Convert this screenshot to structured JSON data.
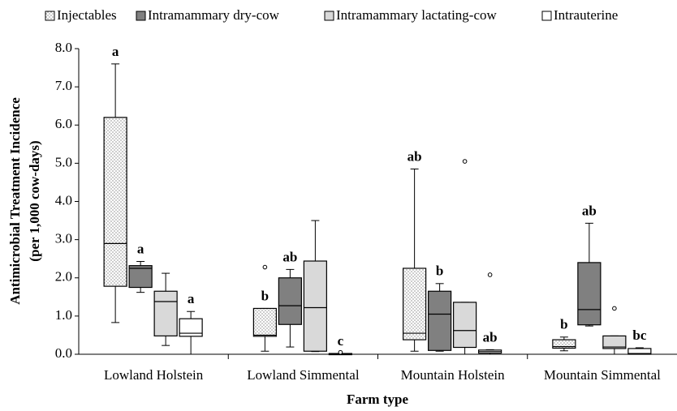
{
  "chart_data": {
    "type": "box",
    "ylabel": [
      "Antimicrobial Treatment Incidence",
      "(per 1,000 cow-days)"
    ],
    "xlabel": "Farm type",
    "categories": [
      "Lowland Holstein",
      "Lowland Simmental",
      "Mountain Holstein",
      "Mountain Simmental"
    ],
    "ylim": [
      0,
      8
    ],
    "yticks": [
      {
        "value": 0,
        "label": "0.0"
      },
      {
        "value": 1,
        "label": "1.0"
      },
      {
        "value": 2,
        "label": "2.0"
      },
      {
        "value": 3,
        "label": "3.0"
      },
      {
        "value": 4,
        "label": "4.0"
      },
      {
        "value": 5,
        "label": "5.0"
      },
      {
        "value": 6,
        "label": "6.0"
      },
      {
        "value": 7,
        "label": "7.0"
      },
      {
        "value": 8,
        "label": "8.0"
      }
    ],
    "legend": "top",
    "series": [
      {
        "name": "Injectables",
        "color": "#ffffff",
        "pattern": "dots",
        "boxes": [
          {
            "min": 0.83,
            "q1": 1.78,
            "median": 2.9,
            "q3": 6.2,
            "max": 7.6
          },
          {
            "min": 0.08,
            "q1": 0.47,
            "median": 0.5,
            "q3": 1.2,
            "max": 1.2
          },
          {
            "min": 0.08,
            "q1": 0.38,
            "median": 0.55,
            "q3": 2.25,
            "max": 4.85
          },
          {
            "min": 0.09,
            "q1": 0.16,
            "median": 0.2,
            "q3": 0.38,
            "max": 0.45
          }
        ],
        "outliers": [
          [],
          [
            2.28
          ],
          [],
          []
        ],
        "letters": [
          "a",
          "b",
          "ab",
          "b"
        ]
      },
      {
        "name": "Intramammary dry-cow",
        "color": "#808080",
        "boxes": [
          {
            "min": 1.62,
            "q1": 1.75,
            "median": 2.25,
            "q3": 2.32,
            "max": 2.43
          },
          {
            "min": 0.19,
            "q1": 0.78,
            "median": 1.27,
            "q3": 2.0,
            "max": 2.22
          },
          {
            "min": 0.08,
            "q1": 0.1,
            "median": 1.05,
            "q3": 1.65,
            "max": 1.85
          },
          {
            "min": 0.74,
            "q1": 0.77,
            "median": 1.17,
            "q3": 2.4,
            "max": 3.43
          }
        ],
        "outliers": [
          [],
          [],
          [],
          []
        ],
        "letters": [
          "a",
          "ab",
          "b",
          "ab"
        ]
      },
      {
        "name": "Intramammary lactating-cow",
        "color": "#d9d9d9",
        "boxes": [
          {
            "min": 0.23,
            "q1": 0.48,
            "median": 1.38,
            "q3": 1.65,
            "max": 2.12
          },
          {
            "min": 0.07,
            "q1": 0.08,
            "median": 1.22,
            "q3": 2.44,
            "max": 3.5
          },
          {
            "min": 0,
            "q1": 0.18,
            "median": 0.62,
            "q3": 1.36,
            "max": 1.36
          },
          {
            "min": 0,
            "q1": 0.15,
            "median": 0.19,
            "q3": 0.48,
            "max": 0.48
          }
        ],
        "outliers": [
          [],
          [],
          [
            5.05
          ],
          [
            1.2
          ]
        ],
        "letters": [
          null,
          null,
          null,
          null
        ]
      },
      {
        "name": "Intrauterine",
        "color": "#ffffff",
        "boxes": [
          {
            "min": 0,
            "q1": 0.47,
            "median": 0.55,
            "q3": 0.93,
            "max": 1.12
          },
          {
            "min": 0,
            "q1": 0,
            "median": 0,
            "q3": 0.02,
            "max": 0.02
          },
          {
            "min": 0,
            "q1": 0.03,
            "median": 0.07,
            "q3": 0.11,
            "max": 0.12
          },
          {
            "min": 0,
            "q1": 0,
            "median": 0.02,
            "q3": 0.15,
            "max": 0.17
          }
        ],
        "outliers": [
          [],
          [
            0.05
          ],
          [
            2.08
          ],
          []
        ],
        "letters": [
          "a",
          "c",
          "ab",
          "bc"
        ]
      }
    ]
  }
}
